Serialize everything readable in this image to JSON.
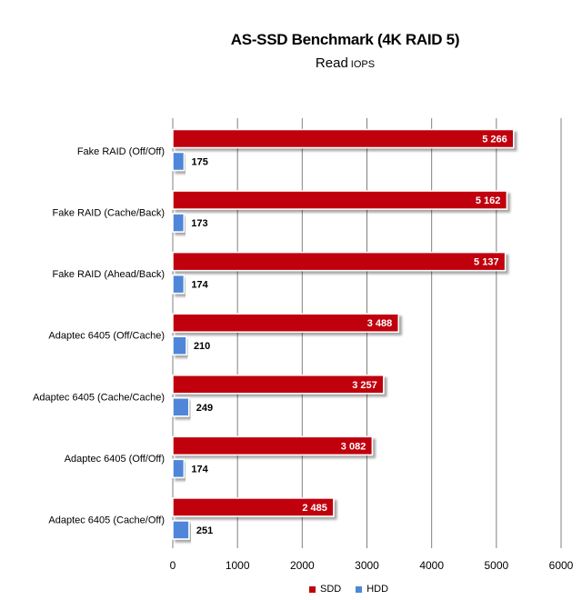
{
  "chart_data": {
    "type": "bar",
    "orientation": "horizontal",
    "title": "AS-SSD Benchmark (4K RAID 5)",
    "subtitle": [
      "Read",
      "IOPS"
    ],
    "categories": [
      "Fake RAID (Off/Off)",
      "Fake RAID (Cache/Back)",
      "Fake RAID (Ahead/Back)",
      "Adaptec 6405 (Off/Cache)",
      "Adaptec 6405 (Cache/Cache)",
      "Adaptec 6405 (Off/Off)",
      "Adaptec 6405 (Cache/Off)"
    ],
    "series": [
      {
        "name": "SDD",
        "color": "#c0000a",
        "values": [
          5266,
          5162,
          5137,
          3488,
          3257,
          3082,
          2485
        ],
        "labels": [
          "5 266",
          "5 162",
          "5 137",
          "3 488",
          "3 257",
          "3 082",
          "2 485"
        ]
      },
      {
        "name": "HDD",
        "color": "#4f86d9",
        "values": [
          175,
          173,
          174,
          210,
          249,
          174,
          251
        ],
        "labels": [
          "175",
          "173",
          "174",
          "210",
          "249",
          "174",
          "251"
        ]
      }
    ],
    "xlim": [
      0,
      6000
    ],
    "xticks": [
      "0",
      "1000",
      "2000",
      "3000",
      "4000",
      "5000",
      "6000"
    ],
    "grid": true,
    "legend": "bottom-right"
  }
}
